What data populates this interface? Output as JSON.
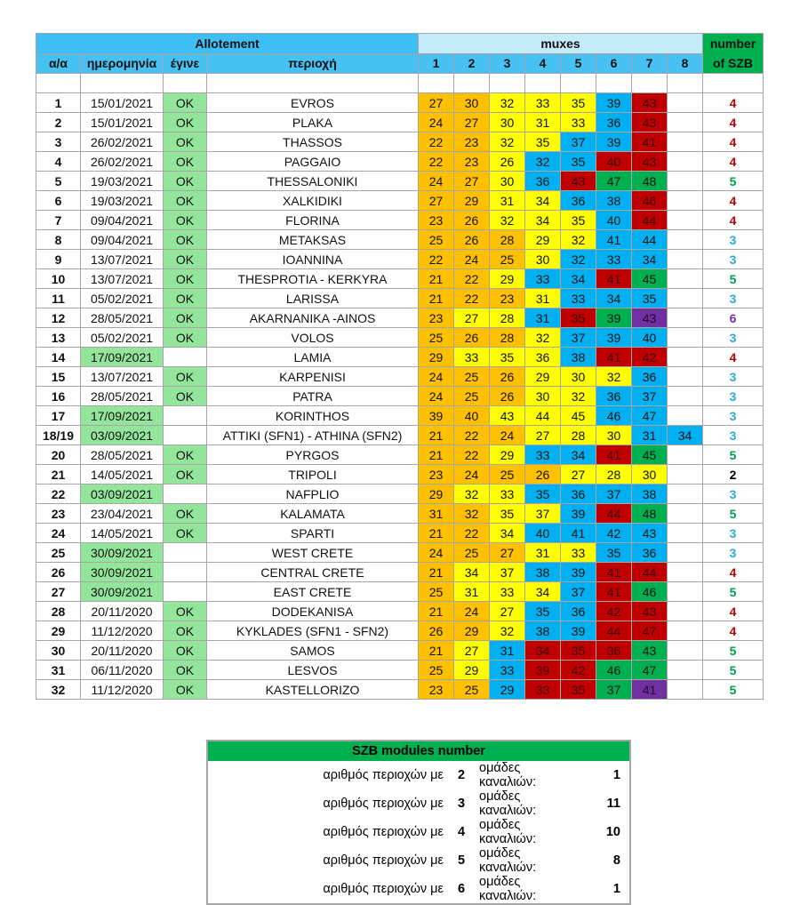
{
  "header": {
    "allotement": "Allotement",
    "muxes": "muxes",
    "szb_line1": "number",
    "szb_line2": "of SZB",
    "col_no": "α/α",
    "col_date": "ημερομηνία",
    "col_done": "έγινε",
    "col_region": "περιοχή",
    "mux_numbers": [
      "1",
      "2",
      "3",
      "4",
      "5",
      "6",
      "7",
      "8"
    ]
  },
  "palette": {
    "O": "#ffc000",
    "Y": "#ffff00",
    "B": "#00b0f0",
    "R": "#c00000",
    "G": "#00b050",
    "P": "#7030a0"
  },
  "szb_colors": {
    "2": "#000000",
    "3": "#2aa8e0",
    "4": "#c00000",
    "5": "#00a050",
    "6": "#7030a0"
  },
  "rows": [
    {
      "no": "1",
      "date": "15/01/2021",
      "done": "OK",
      "region": "EVROS",
      "mux": [
        "27",
        "30",
        "32",
        "33",
        "35",
        "39",
        "43"
      ],
      "colors": "OOYYYBR",
      "szb": "4"
    },
    {
      "no": "2",
      "date": "15/01/2021",
      "done": "OK",
      "region": "PLAKA",
      "mux": [
        "24",
        "27",
        "30",
        "31",
        "33",
        "36",
        "43"
      ],
      "colors": "OOYYYBR",
      "szb": "4"
    },
    {
      "no": "3",
      "date": "26/02/2021",
      "done": "OK",
      "region": "THASSOS",
      "mux": [
        "22",
        "23",
        "32",
        "35",
        "37",
        "39",
        "41"
      ],
      "colors": "OOYYBBR",
      "szb": "4"
    },
    {
      "no": "4",
      "date": "26/02/2021",
      "done": "OK",
      "region": "PAGGAIO",
      "mux": [
        "22",
        "23",
        "26",
        "32",
        "35",
        "40",
        "43"
      ],
      "colors": "OOYBBRR",
      "szb": "4"
    },
    {
      "no": "5",
      "date": "19/03/2021",
      "done": "OK",
      "region": "THESSALONIKI",
      "mux": [
        "24",
        "27",
        "30",
        "36",
        "43",
        "47",
        "48"
      ],
      "colors": "OOYBRGG",
      "szb": "5"
    },
    {
      "no": "6",
      "date": "19/03/2021",
      "done": "OK",
      "region": "XALKIDIKI",
      "mux": [
        "27",
        "29",
        "31",
        "34",
        "36",
        "38",
        "46"
      ],
      "colors": "OOYYBBR",
      "szb": "4"
    },
    {
      "no": "7",
      "date": "09/04/2021",
      "done": "OK",
      "region": "FLORINA",
      "mux": [
        "23",
        "26",
        "32",
        "34",
        "35",
        "40",
        "44"
      ],
      "colors": "OOYYYBR",
      "szb": "4"
    },
    {
      "no": "8",
      "date": "09/04/2021",
      "done": "OK",
      "region": "METAKSAS",
      "mux": [
        "25",
        "26",
        "28",
        "29",
        "32",
        "41",
        "44"
      ],
      "colors": "OOOYYBB",
      "szb": "3"
    },
    {
      "no": "9",
      "date": "13/07/2021",
      "done": "OK",
      "region": "IOANNINA",
      "mux": [
        "22",
        "24",
        "25",
        "30",
        "32",
        "33",
        "34"
      ],
      "colors": "OOOYBBB",
      "szb": "3"
    },
    {
      "no": "10",
      "date": "13/07/2021",
      "done": "OK",
      "region": "THESPROTIA - KERKYRA",
      "mux": [
        "21",
        "22",
        "29",
        "33",
        "34",
        "41",
        "45"
      ],
      "colors": "OOYBBRG",
      "szb": "5"
    },
    {
      "no": "11",
      "date": "05/02/2021",
      "done": "OK",
      "region": "LARISSA",
      "mux": [
        "21",
        "22",
        "23",
        "31",
        "33",
        "34",
        "35"
      ],
      "colors": "OOOYBBB",
      "szb": "3"
    },
    {
      "no": "12",
      "date": "28/05/2021",
      "done": "OK",
      "region": "AKARNANIKA -AINOS",
      "mux": [
        "23",
        "27",
        "28",
        "31",
        "35",
        "39",
        "43"
      ],
      "colors": "OYYBRGP",
      "szb": "6"
    },
    {
      "no": "13",
      "date": "05/02/2021",
      "done": "OK",
      "region": "VOLOS",
      "mux": [
        "25",
        "26",
        "28",
        "32",
        "37",
        "39",
        "40"
      ],
      "colors": "OOOYBBB",
      "szb": "3"
    },
    {
      "no": "14",
      "date": "17/09/2021",
      "done": "",
      "region": "LAMIA",
      "mux": [
        "29",
        "33",
        "35",
        "36",
        "38",
        "41",
        "42"
      ],
      "colors": "OYYYBRR",
      "szb": "4"
    },
    {
      "no": "15",
      "date": "13/07/2021",
      "done": "OK",
      "region": "KARPENISI",
      "mux": [
        "24",
        "25",
        "26",
        "29",
        "30",
        "32",
        "36"
      ],
      "colors": "OOOYYYB",
      "szb": "3"
    },
    {
      "no": "16",
      "date": "28/05/2021",
      "done": "OK",
      "region": "PATRA",
      "mux": [
        "24",
        "25",
        "26",
        "30",
        "32",
        "36",
        "37"
      ],
      "colors": "OOOYYBB",
      "szb": "3"
    },
    {
      "no": "17",
      "date": "17/09/2021",
      "done": "",
      "region": "KORINTHOS",
      "mux": [
        "39",
        "40",
        "43",
        "44",
        "45",
        "46",
        "47"
      ],
      "colors": "OOYYYBB",
      "szb": "3"
    },
    {
      "no": "18/19",
      "date": "03/09/2021",
      "done": "",
      "region": "ATTIKI (SFN1) - ATHINA (SFN2)",
      "mux": [
        "21",
        "22",
        "24",
        "27",
        "28",
        "30",
        "31",
        "34"
      ],
      "colors": "OOOYYYBB",
      "szb": "3"
    },
    {
      "no": "20",
      "date": "28/05/2021",
      "done": "OK",
      "region": "PYRGOS",
      "mux": [
        "21",
        "22",
        "29",
        "33",
        "34",
        "41",
        "45"
      ],
      "colors": "OOYBBRG",
      "szb": "5"
    },
    {
      "no": "21",
      "date": "14/05/2021",
      "done": "OK",
      "region": "TRIPOLI",
      "mux": [
        "23",
        "24",
        "25",
        "26",
        "27",
        "28",
        "30"
      ],
      "colors": "OOOOYYY",
      "szb": "2"
    },
    {
      "no": "22",
      "date": "03/09/2021",
      "done": "",
      "region": "NAFPLIO",
      "mux": [
        "29",
        "32",
        "33",
        "35",
        "36",
        "37",
        "38"
      ],
      "colors": "OYYBBBB",
      "szb": "3"
    },
    {
      "no": "23",
      "date": "23/04/2021",
      "done": "OK",
      "region": "KALAMATA",
      "mux": [
        "31",
        "32",
        "35",
        "37",
        "39",
        "44",
        "48"
      ],
      "colors": "OOYYBRG",
      "szb": "5"
    },
    {
      "no": "24",
      "date": "14/05/2021",
      "done": "OK",
      "region": "SPARTI",
      "mux": [
        "21",
        "22",
        "34",
        "40",
        "41",
        "42",
        "43"
      ],
      "colors": "OOYBBBB",
      "szb": "3"
    },
    {
      "no": "25",
      "date": "30/09/2021",
      "done": "",
      "region": "WEST CRETE",
      "mux": [
        "24",
        "25",
        "27",
        "31",
        "33",
        "35",
        "36"
      ],
      "colors": "OOOYYBB",
      "szb": "3"
    },
    {
      "no": "26",
      "date": "30/09/2021",
      "done": "",
      "region": "CENTRAL CRETE",
      "mux": [
        "21",
        "34",
        "37",
        "38",
        "39",
        "41",
        "44"
      ],
      "colors": "OYYBBRR",
      "szb": "4"
    },
    {
      "no": "27",
      "date": "30/09/2021",
      "done": "",
      "region": "EAST CRETE",
      "mux": [
        "25",
        "31",
        "33",
        "34",
        "37",
        "41",
        "46"
      ],
      "colors": "OYYYBRG",
      "szb": "5"
    },
    {
      "no": "28",
      "date": "20/11/2020",
      "done": "OK",
      "region": "DODEKANISA",
      "mux": [
        "21",
        "24",
        "27",
        "35",
        "36",
        "42",
        "43"
      ],
      "colors": "OOYBBRR",
      "szb": "4"
    },
    {
      "no": "29",
      "date": "11/12/2020",
      "done": "OK",
      "region": "KYKLADES (SFN1 - SFN2)",
      "mux": [
        "26",
        "29",
        "32",
        "38",
        "39",
        "44",
        "47"
      ],
      "colors": "OOYBBRR",
      "szb": "4"
    },
    {
      "no": "30",
      "date": "20/11/2020",
      "done": "OK",
      "region": "SAMOS",
      "mux": [
        "21",
        "27",
        "31",
        "34",
        "35",
        "36",
        "43"
      ],
      "colors": "OYBRRRG",
      "szb": "5"
    },
    {
      "no": "31",
      "date": "06/11/2020",
      "done": "OK",
      "region": "LESVOS",
      "mux": [
        "25",
        "29",
        "33",
        "39",
        "42",
        "46",
        "47"
      ],
      "colors": "OYBRRGG",
      "szb": "5"
    },
    {
      "no": "32",
      "date": "11/12/2020",
      "done": "OK",
      "region": "KASTELLORIZO",
      "mux": [
        "23",
        "25",
        "29",
        "33",
        "35",
        "37",
        "41"
      ],
      "colors": "OOBRRGP",
      "szb": "5"
    }
  ],
  "summary": {
    "title": "SZB modules number",
    "rows": [
      {
        "prefix": "αριθμός περιοχών με",
        "groups": "2",
        "suffix": "ομάδες καναλιών:",
        "count": "1"
      },
      {
        "prefix": "αριθμός περιοχών με",
        "groups": "3",
        "suffix": "ομάδες καναλιών:",
        "count": "11"
      },
      {
        "prefix": "αριθμός περιοχών με",
        "groups": "4",
        "suffix": "ομάδες καναλιών:",
        "count": "10"
      },
      {
        "prefix": "αριθμός περιοχών με",
        "groups": "5",
        "suffix": "ομάδες καναλιών:",
        "count": "8"
      },
      {
        "prefix": "αριθμός περιοχών με",
        "groups": "6",
        "suffix": "ομάδες καναλιών:",
        "count": "1"
      }
    ]
  }
}
